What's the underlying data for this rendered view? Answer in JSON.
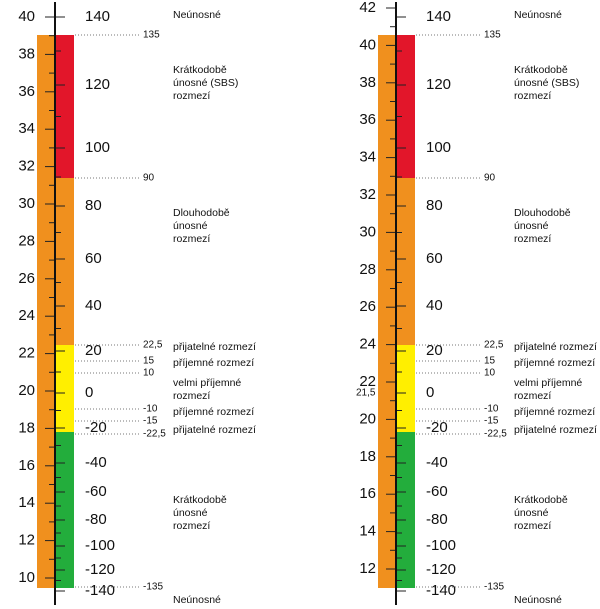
{
  "panels": [
    {
      "left_scale": [
        40,
        38,
        36,
        34,
        32,
        30,
        28,
        26,
        24,
        22,
        20,
        18,
        16,
        14,
        12,
        10
      ],
      "right_scale": [
        140,
        120,
        100,
        80,
        60,
        40,
        20,
        0,
        -20,
        -40,
        -60,
        -80,
        -100,
        -120,
        -140
      ],
      "thresholds": [
        "135",
        "90",
        "22,5",
        "15",
        "10",
        "-10",
        "-15",
        "-22,5",
        "-135"
      ],
      "zones": [
        [
          "Neúnosné"
        ],
        [
          "Krátkodobě",
          "únosné (SBS)",
          "rozmezí"
        ],
        [
          "Dlouhodobě",
          "únosné",
          "rozmezí"
        ],
        [
          "přijatelné rozmezí"
        ],
        [
          "příjemné rozmezí"
        ],
        [
          "velmi příjemné",
          "rozmezí"
        ],
        [
          "příjemné rozmezí"
        ],
        [
          "přijatelné rozmezí"
        ],
        [
          "Krátkodobě",
          "únosné",
          "rozmezí"
        ],
        [
          "Neúnosné"
        ]
      ]
    },
    {
      "left_scale": [
        42,
        40,
        38,
        36,
        34,
        32,
        30,
        28,
        26,
        24,
        22,
        20,
        18,
        16,
        14,
        12
      ],
      "marker": "21,5",
      "right_scale": [
        140,
        120,
        100,
        80,
        60,
        40,
        20,
        0,
        -20,
        -40,
        -60,
        -80,
        -100,
        -120,
        -140
      ],
      "thresholds": [
        "135",
        "90",
        "22,5",
        "15",
        "10",
        "-10",
        "-15",
        "-22,5",
        "-135"
      ],
      "zones": [
        [
          "Neúnosné"
        ],
        [
          "Krátkodobě",
          "únosné (SBS)",
          "rozmezí"
        ],
        [
          "Dlouhodobě",
          "únosné",
          "rozmezí"
        ],
        [
          "přijatelné rozmezí"
        ],
        [
          "příjemné rozmezí"
        ],
        [
          "velmi příjemné",
          "rozmezí"
        ],
        [
          "příjemné rozmezí"
        ],
        [
          "přijatelné rozmezí"
        ],
        [
          "Krátkodobě",
          "únosné",
          "rozmezí"
        ],
        [
          "Neúnosné"
        ]
      ]
    }
  ]
}
